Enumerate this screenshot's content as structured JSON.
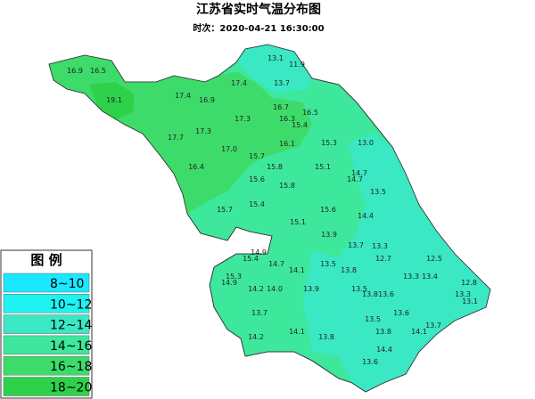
{
  "header": {
    "title": "江苏省实时气温分布图",
    "subtitle": "时次：2020-04-21 16:30:00"
  },
  "legend": {
    "title": "图 例",
    "items": [
      {
        "label": "8~10",
        "color": "#19e8ff"
      },
      {
        "label": "10~12",
        "color": "#1ff2f2"
      },
      {
        "label": "12~14",
        "color": "#3ae8c4"
      },
      {
        "label": "14~16",
        "color": "#3de89c"
      },
      {
        "label": "16~18",
        "color": "#3ddc6a"
      },
      {
        "label": "18~20",
        "color": "#2ed24a"
      }
    ]
  },
  "stations": [
    "16.9",
    "16.5",
    "19.1",
    "17.4",
    "17.4",
    "16.9",
    "17.3",
    "16.7",
    "16.5",
    "16.3",
    "17.7",
    "17.3",
    "15.4",
    "16.1",
    "15.3",
    "13.0",
    "17.0",
    "15.7",
    "16.4",
    "15.8",
    "15.1",
    "14.7",
    "14.7",
    "15.6",
    "15.8",
    "13.5",
    "15.7",
    "15.4",
    "15.6",
    "14.4",
    "15.1",
    "13.9",
    "13.7",
    "13.3",
    "14.9",
    "15.4",
    "14.7",
    "14.1",
    "13.5",
    "12.7",
    "12.5",
    "15.3",
    "14.9",
    "13.8",
    "13.3",
    "13.4",
    "12.8",
    "14.2",
    "14.0",
    "13.9",
    "13.5",
    "13.8",
    "13.6",
    "13.3",
    "13.1",
    "13.7",
    "13.5",
    "13.6",
    "14.1",
    "13.8",
    "13.8",
    "14.1",
    "13.7",
    "14.2",
    "14.4",
    "13.6",
    "13.1",
    "11.9",
    "13.7"
  ]
}
